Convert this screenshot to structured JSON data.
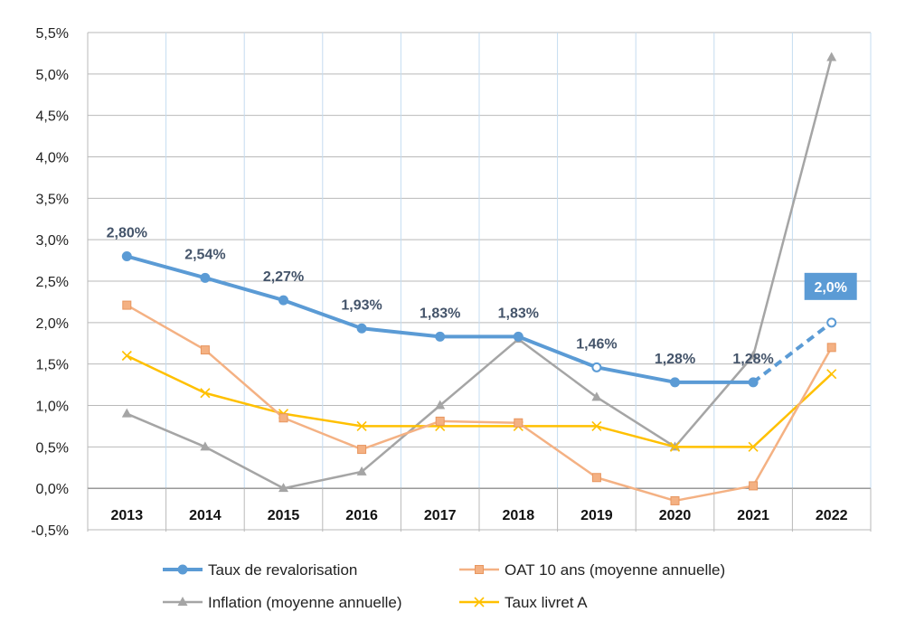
{
  "chart_data": {
    "type": "line",
    "title": "",
    "xlabel": "",
    "ylabel": "",
    "categories": [
      "2013",
      "2014",
      "2015",
      "2016",
      "2017",
      "2018",
      "2019",
      "2020",
      "2021",
      "2022"
    ],
    "ylim": [
      -0.5,
      5.5
    ],
    "y_ticks": [
      "-0,5%",
      "0,0%",
      "0,5%",
      "1,0%",
      "1,5%",
      "2,0%",
      "2,5%",
      "3,0%",
      "3,5%",
      "4,0%",
      "4,5%",
      "5,0%",
      "5,5%"
    ],
    "grid": true,
    "legend_position": "bottom",
    "series": [
      {
        "name": "Taux de revalorisation",
        "color": "#5b9bd5",
        "marker": "circle",
        "values": [
          2.8,
          2.54,
          2.27,
          1.93,
          1.83,
          1.83,
          1.46,
          1.28,
          1.28,
          2.0
        ],
        "labels": [
          "2,80%",
          "2,54%",
          "2,27%",
          "1,93%",
          "1,83%",
          "1,83%",
          "1,46%",
          "1,28%",
          "1,28%",
          "2,0%"
        ],
        "dashed_last_segment": true
      },
      {
        "name": "OAT 10 ans (moyenne annuelle)",
        "color": "#f4b183",
        "marker": "square",
        "values": [
          2.21,
          1.67,
          0.85,
          0.47,
          0.81,
          0.79,
          0.13,
          -0.15,
          0.03,
          1.7
        ]
      },
      {
        "name": "Inflation (moyenne annuelle)",
        "color": "#a5a5a5",
        "marker": "triangle",
        "values": [
          0.9,
          0.5,
          0.0,
          0.2,
          1.0,
          1.8,
          1.1,
          0.5,
          1.6,
          5.2
        ]
      },
      {
        "name": "Taux livret A",
        "color": "#ffc000",
        "marker": "x",
        "values": [
          1.6,
          1.15,
          0.9,
          0.75,
          0.75,
          0.75,
          0.75,
          0.5,
          0.5,
          1.38
        ]
      }
    ]
  }
}
